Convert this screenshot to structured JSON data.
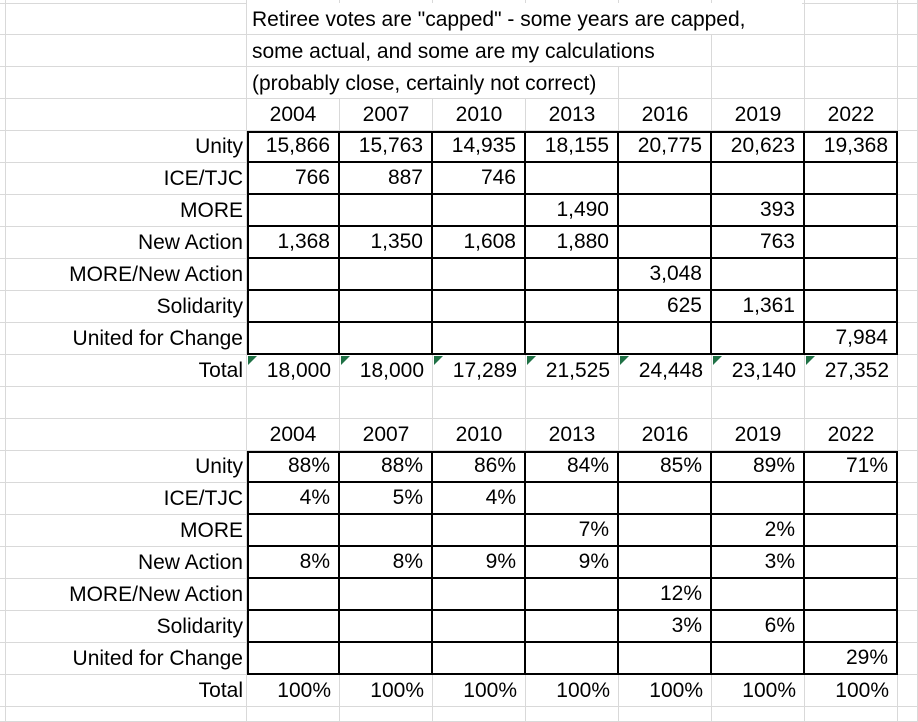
{
  "title": {
    "line1": "Retiree votes are \"capped\" - some years are capped,",
    "line2": "some actual, and some are my calculations",
    "line3": "(probably close, certainly not correct)"
  },
  "years": [
    "2004",
    "2007",
    "2010",
    "2013",
    "2016",
    "2019",
    "2022"
  ],
  "votes_table": {
    "rows": [
      {
        "label": "Unity",
        "values": [
          "15,866",
          "15,763",
          "14,935",
          "18,155",
          "20,775",
          "20,623",
          "19,368"
        ]
      },
      {
        "label": "ICE/TJC",
        "values": [
          "766",
          "887",
          "746",
          "",
          "",
          "",
          ""
        ]
      },
      {
        "label": "MORE",
        "values": [
          "",
          "",
          "",
          "1,490",
          "",
          "393",
          ""
        ]
      },
      {
        "label": "New Action",
        "values": [
          "1,368",
          "1,350",
          "1,608",
          "1,880",
          "",
          "763",
          ""
        ]
      },
      {
        "label": "MORE/New Action",
        "values": [
          "",
          "",
          "",
          "",
          "3,048",
          "",
          ""
        ]
      },
      {
        "label": "Solidarity",
        "values": [
          "",
          "",
          "",
          "",
          "625",
          "1,361",
          ""
        ]
      },
      {
        "label": "United for Change",
        "values": [
          "",
          "",
          "",
          "",
          "",
          "",
          "7,984"
        ]
      },
      {
        "label": "Total",
        "values": [
          "18,000",
          "18,000",
          "17,289",
          "21,525",
          "24,448",
          "23,140",
          "27,352"
        ],
        "flagged": true
      }
    ]
  },
  "percent_table": {
    "rows": [
      {
        "label": "Unity",
        "values": [
          "88%",
          "88%",
          "86%",
          "84%",
          "85%",
          "89%",
          "71%"
        ]
      },
      {
        "label": "ICE/TJC",
        "values": [
          "4%",
          "5%",
          "4%",
          "",
          "",
          "",
          ""
        ]
      },
      {
        "label": "MORE",
        "values": [
          "",
          "",
          "",
          "7%",
          "",
          "2%",
          ""
        ]
      },
      {
        "label": "New Action",
        "values": [
          "8%",
          "8%",
          "9%",
          "9%",
          "",
          "3%",
          ""
        ]
      },
      {
        "label": "MORE/New Action",
        "values": [
          "",
          "",
          "",
          "",
          "12%",
          "",
          ""
        ]
      },
      {
        "label": "Solidarity",
        "values": [
          "",
          "",
          "",
          "",
          "3%",
          "6%",
          ""
        ]
      },
      {
        "label": "United for Change",
        "values": [
          "",
          "",
          "",
          "",
          "",
          "",
          "29%"
        ]
      },
      {
        "label": "Total",
        "values": [
          "100%",
          "100%",
          "100%",
          "100%",
          "100%",
          "100%",
          "100%"
        ]
      }
    ]
  },
  "icons": {
    "flag": "formula-error-triangle"
  },
  "colors": {
    "background": "#ffffff",
    "gridline": "#d9d9d9",
    "cell_border": "#000000",
    "text": "#000000",
    "error_flag_green": "#1f7145"
  }
}
